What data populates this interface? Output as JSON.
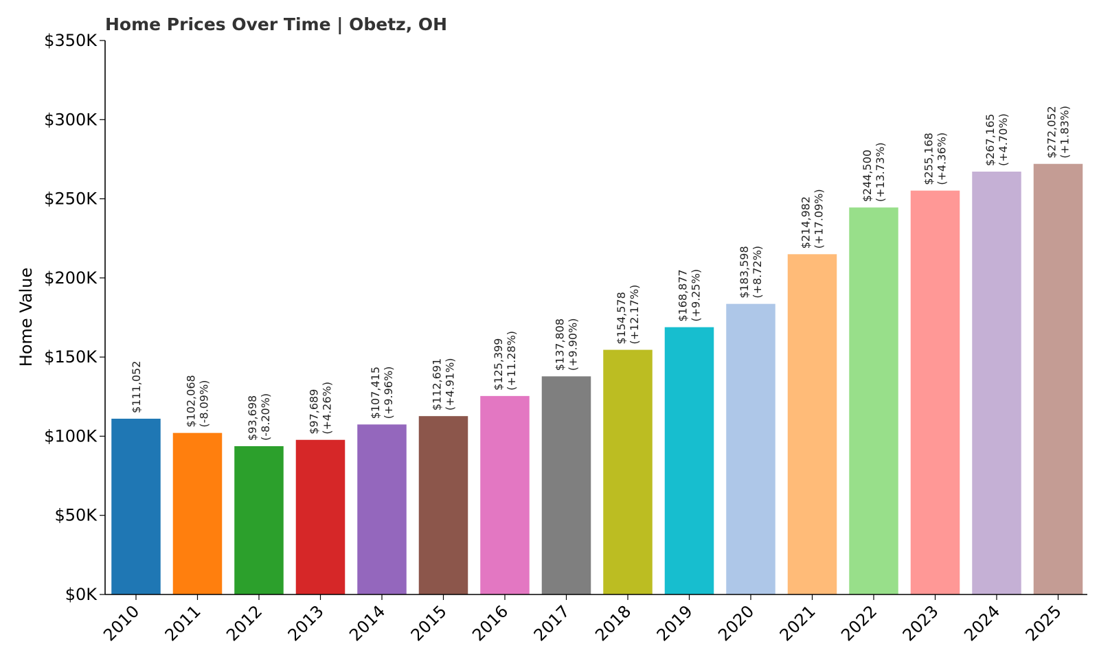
{
  "chart_data": {
    "type": "bar",
    "title": "Home Prices Over Time | Obetz, OH",
    "xlabel": "",
    "ylabel": "Home Value",
    "ylim": [
      0,
      350000
    ],
    "y_ticks": [
      0,
      50000,
      100000,
      150000,
      200000,
      250000,
      300000,
      350000
    ],
    "y_tick_labels": [
      "$0K",
      "$50K",
      "$100K",
      "$150K",
      "$200K",
      "$250K",
      "$300K",
      "$350K"
    ],
    "categories": [
      "2010",
      "2011",
      "2012",
      "2013",
      "2014",
      "2015",
      "2016",
      "2017",
      "2018",
      "2019",
      "2020",
      "2021",
      "2022",
      "2023",
      "2024",
      "2025"
    ],
    "values": [
      111052,
      102068,
      93698,
      97689,
      107415,
      112691,
      125399,
      137808,
      154578,
      168877,
      183598,
      214982,
      244500,
      255168,
      267165,
      272052
    ],
    "value_labels": [
      "$111,052",
      "$102,068",
      "$93,698",
      "$97,689",
      "$107,415",
      "$112,691",
      "$125,399",
      "$137,808",
      "$154,578",
      "$168,877",
      "$183,598",
      "$214,982",
      "$244,500",
      "$255,168",
      "$267,165",
      "$272,052"
    ],
    "change_labels": [
      "",
      "(-8.09%)",
      "(-8.20%)",
      "(+4.26%)",
      "(+9.96%)",
      "(+4.91%)",
      "(+11.28%)",
      "(+9.90%)",
      "(+12.17%)",
      "(+9.25%)",
      "(+8.72%)",
      "(+17.09%)",
      "(+13.73%)",
      "(+4.36%)",
      "(+4.70%)",
      "(+1.83%)"
    ],
    "colors": [
      "#1f77b4",
      "#ff7f0e",
      "#2ca02c",
      "#d62728",
      "#9467bd",
      "#8c564b",
      "#e377c2",
      "#7f7f7f",
      "#bcbd22",
      "#17becf",
      "#aec7e8",
      "#ffbb78",
      "#98df8a",
      "#ff9896",
      "#c5b0d5",
      "#c49c94"
    ],
    "grid": false,
    "legend": "none"
  }
}
